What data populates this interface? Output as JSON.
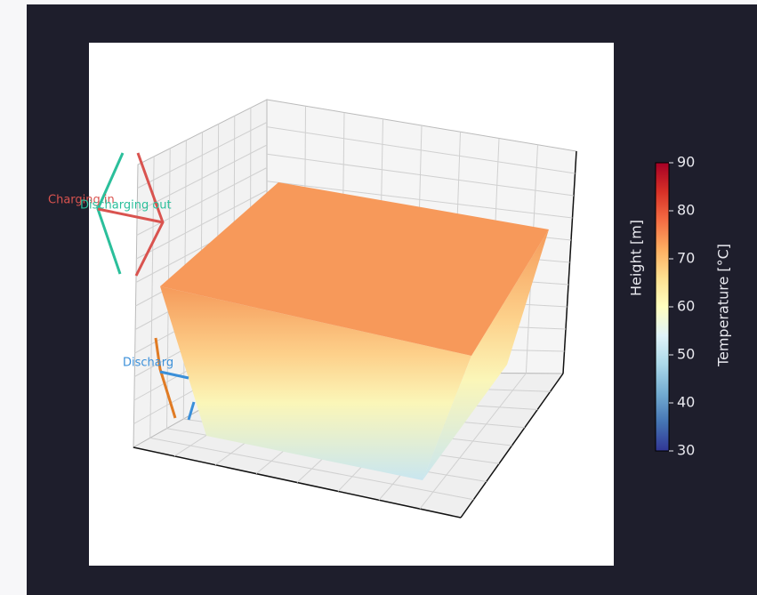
{
  "chart_data": {
    "type": "tank3d",
    "annotations": [
      {
        "text": "Charging in",
        "color": "#d9534f"
      },
      {
        "text": "Discharging out",
        "color": "#2bbf9b"
      },
      {
        "text": "Discharg",
        "color": "#3a8fd9"
      }
    ],
    "zlabel": "Height [m]",
    "colorbar": {
      "label": "Temperature [°C]",
      "lim": [
        30,
        90
      ],
      "ticks": [
        30,
        40,
        50,
        60,
        70,
        80,
        90
      ],
      "colormap": [
        "#313695",
        "#4575b4",
        "#74add1",
        "#abd9e9",
        "#e0f3f8",
        "#ffffbf",
        "#fee090",
        "#fdae61",
        "#f46d43",
        "#d73027",
        "#a50026"
      ]
    }
  }
}
